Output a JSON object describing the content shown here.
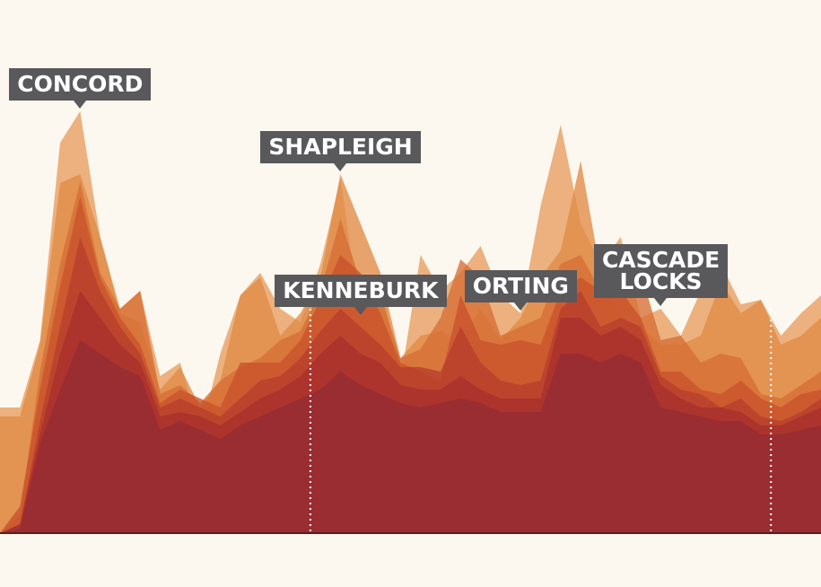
{
  "chart_data": {
    "type": "area",
    "title": "",
    "xlabel": "",
    "ylabel": "",
    "x": [
      0,
      1,
      2,
      3,
      4,
      5,
      6,
      7,
      8,
      9,
      10,
      11,
      12,
      13,
      14,
      15,
      16,
      17,
      18,
      19,
      20,
      21,
      22,
      23,
      24,
      25,
      26,
      27,
      28,
      29,
      30,
      31,
      32,
      33,
      34,
      35,
      36,
      37,
      38,
      39,
      40,
      41
    ],
    "ylim": [
      0,
      480
    ],
    "grid": false,
    "legend": "none",
    "colors": [
      "#e9a46a",
      "#e08a45",
      "#d66e34",
      "#c9522b",
      "#b93e2c",
      "#a7302e",
      "#952c32"
    ],
    "reference_lines_x": [
      15.5,
      38.5
    ],
    "series": [
      {
        "values": [
          140,
          140,
          215,
          435,
          470,
          330,
          250,
          270,
          175,
          190,
          110,
          200,
          265,
          290,
          250,
          235,
          300,
          395,
          240,
          285,
          170,
          310,
          270,
          290,
          320,
          265,
          245,
          365,
          455,
          345,
          300,
          330,
          240,
          250,
          220,
          270,
          300,
          255,
          260,
          220,
          245,
          265
        ]
      },
      {
        "values": [
          130,
          130,
          210,
          390,
          400,
          330,
          245,
          235,
          160,
          185,
          140,
          170,
          265,
          285,
          220,
          245,
          285,
          400,
          345,
          290,
          195,
          220,
          225,
          215,
          250,
          215,
          240,
          285,
          315,
          415,
          290,
          240,
          230,
          210,
          210,
          220,
          280,
          245,
          260,
          210,
          220,
          240
        ]
      },
      {
        "values": [
          0,
          20,
          180,
          300,
          392,
          290,
          250,
          270,
          155,
          165,
          145,
          170,
          185,
          195,
          215,
          225,
          270,
          350,
          280,
          265,
          195,
          205,
          240,
          305,
          285,
          220,
          230,
          240,
          300,
          310,
          270,
          280,
          290,
          215,
          220,
          190,
          200,
          195,
          155,
          150,
          165,
          180
        ]
      },
      {
        "values": [
          0,
          30,
          160,
          275,
          375,
          285,
          240,
          210,
          145,
          160,
          150,
          140,
          190,
          190,
          190,
          215,
          260,
          310,
          290,
          245,
          190,
          180,
          170,
          265,
          215,
          210,
          215,
          210,
          270,
          285,
          270,
          270,
          240,
          180,
          180,
          160,
          155,
          170,
          150,
          140,
          155,
          160
        ]
      },
      {
        "values": [
          0,
          10,
          125,
          230,
          330,
          270,
          230,
          200,
          140,
          150,
          140,
          130,
          150,
          170,
          175,
          195,
          225,
          250,
          230,
          210,
          185,
          185,
          180,
          230,
          190,
          170,
          165,
          170,
          250,
          270,
          230,
          240,
          230,
          175,
          160,
          155,
          140,
          150,
          130,
          125,
          135,
          150
        ]
      },
      {
        "values": [
          0,
          10,
          110,
          200,
          270,
          240,
          210,
          190,
          130,
          135,
          130,
          120,
          135,
          150,
          160,
          175,
          200,
          220,
          200,
          190,
          165,
          160,
          160,
          175,
          160,
          150,
          150,
          150,
          240,
          240,
          220,
          230,
          215,
          165,
          150,
          140,
          140,
          135,
          120,
          120,
          130,
          140
        ]
      },
      {
        "values": [
          0,
          5,
          100,
          160,
          215,
          200,
          185,
          175,
          115,
          125,
          115,
          105,
          120,
          130,
          140,
          150,
          160,
          180,
          165,
          155,
          145,
          140,
          145,
          150,
          145,
          135,
          135,
          135,
          200,
          200,
          190,
          200,
          190,
          140,
          135,
          130,
          125,
          125,
          110,
          110,
          115,
          120
        ]
      }
    ],
    "annotations": [
      {
        "label": [
          "CONCORD"
        ],
        "series": 0,
        "index": 4
      },
      {
        "label": [
          "KENNEBURK"
        ],
        "series": 0,
        "index": 18
      },
      {
        "label": [
          "SHAPLEIGH"
        ],
        "series": 1,
        "index": 17
      },
      {
        "label": [
          "ORTING"
        ],
        "series": 0,
        "index": 26
      },
      {
        "label": [
          "CASCADE",
          "LOCKS"
        ],
        "series": 0,
        "index": 33
      }
    ]
  }
}
